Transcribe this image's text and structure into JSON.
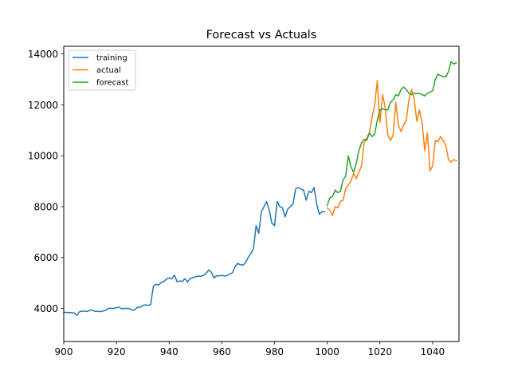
{
  "chart_data": {
    "type": "line",
    "title": "Forecast vs Actuals",
    "xlabel": "",
    "ylabel": "",
    "xlim": [
      900,
      1050
    ],
    "ylim": [
      2700,
      14300
    ],
    "xticks": [
      900,
      920,
      940,
      960,
      980,
      1000,
      1020,
      1040
    ],
    "yticks": [
      4000,
      6000,
      8000,
      10000,
      12000,
      14000
    ],
    "grid": false,
    "legend_position": "top-left",
    "series": [
      {
        "name": "training",
        "color": "#1f77b4",
        "x": [
          900,
          901,
          902,
          903,
          904,
          905,
          906,
          907,
          908,
          909,
          910,
          911,
          912,
          913,
          914,
          915,
          916,
          917,
          918,
          919,
          920,
          921,
          922,
          923,
          924,
          925,
          926,
          927,
          928,
          929,
          930,
          931,
          932,
          933,
          934,
          935,
          936,
          937,
          938,
          939,
          940,
          941,
          942,
          943,
          944,
          945,
          946,
          947,
          948,
          949,
          950,
          951,
          952,
          953,
          954,
          955,
          956,
          957,
          958,
          959,
          960,
          961,
          962,
          963,
          964,
          965,
          966,
          967,
          968,
          969,
          970,
          971,
          972,
          973,
          974,
          975,
          976,
          977,
          978,
          979,
          980,
          981,
          982,
          983,
          984,
          985,
          986,
          987,
          988,
          989,
          990,
          991,
          992,
          993,
          994,
          995,
          996,
          997,
          998,
          999
        ],
        "y": [
          3850,
          3840,
          3840,
          3830,
          3820,
          3730,
          3870,
          3890,
          3890,
          3880,
          3940,
          3920,
          3880,
          3890,
          3870,
          3900,
          3930,
          4010,
          4000,
          4000,
          4030,
          4050,
          3980,
          4000,
          4000,
          3990,
          3930,
          3950,
          4050,
          4050,
          4120,
          4140,
          4120,
          4150,
          4870,
          4950,
          4920,
          5020,
          5060,
          5150,
          5200,
          5160,
          5310,
          5050,
          5080,
          5060,
          5170,
          5040,
          5180,
          5210,
          5240,
          5270,
          5260,
          5300,
          5370,
          5510,
          5420,
          5200,
          5280,
          5280,
          5300,
          5270,
          5290,
          5350,
          5400,
          5650,
          5770,
          5720,
          5700,
          5800,
          6000,
          6150,
          6350,
          7250,
          6950,
          7800,
          8000,
          8200,
          7850,
          7350,
          7250,
          8200,
          8000,
          7950,
          7600,
          7900,
          8000,
          8100,
          8700,
          8750,
          8700,
          8650,
          8250,
          8600,
          8550,
          8750,
          8100,
          7700,
          7800,
          7800
        ]
      },
      {
        "name": "actual",
        "color": "#ff7f0e",
        "x": [
          1000,
          1001,
          1002,
          1003,
          1004,
          1005,
          1006,
          1007,
          1008,
          1009,
          1010,
          1011,
          1012,
          1013,
          1014,
          1015,
          1016,
          1017,
          1018,
          1019,
          1020,
          1021,
          1022,
          1023,
          1024,
          1025,
          1026,
          1027,
          1028,
          1029,
          1030,
          1031,
          1032,
          1033,
          1034,
          1035,
          1036,
          1037,
          1038,
          1039,
          1040,
          1041,
          1042,
          1043,
          1044,
          1045,
          1046,
          1047,
          1048,
          1049
        ],
        "y": [
          7950,
          7850,
          7650,
          8000,
          7950,
          8200,
          8250,
          8700,
          8850,
          9000,
          9300,
          9100,
          9350,
          9600,
          10500,
          10700,
          10900,
          11500,
          12000,
          12950,
          11300,
          12400,
          11900,
          10800,
          10600,
          10800,
          12100,
          11200,
          10950,
          11200,
          11400,
          12200,
          12600,
          12200,
          11350,
          11800,
          11300,
          10200,
          10900,
          9400,
          9600,
          10600,
          10550,
          10750,
          10600,
          10400,
          9850,
          9750,
          9850,
          9800
        ]
      },
      {
        "name": "forecast",
        "color": "#2ca02c",
        "x": [
          1000,
          1001,
          1002,
          1003,
          1004,
          1005,
          1006,
          1007,
          1008,
          1009,
          1010,
          1011,
          1012,
          1013,
          1014,
          1015,
          1016,
          1017,
          1018,
          1019,
          1020,
          1021,
          1022,
          1023,
          1024,
          1025,
          1026,
          1027,
          1028,
          1029,
          1030,
          1031,
          1032,
          1033,
          1034,
          1035,
          1036,
          1037,
          1038,
          1039,
          1040,
          1041,
          1042,
          1043,
          1044,
          1045,
          1046,
          1047,
          1048,
          1049
        ],
        "y": [
          8050,
          8350,
          8400,
          8650,
          8550,
          8600,
          9050,
          9200,
          10000,
          9550,
          9350,
          9700,
          10200,
          10500,
          10650,
          10600,
          10900,
          10750,
          10850,
          11400,
          11800,
          11850,
          11800,
          11800,
          12100,
          12200,
          12400,
          12350,
          12600,
          12700,
          12600,
          12450,
          12400,
          12450,
          12450,
          12450,
          12400,
          12350,
          12450,
          12500,
          12550,
          13000,
          13200,
          13150,
          13100,
          13100,
          13300,
          13700,
          13600,
          13650
        ]
      }
    ]
  }
}
